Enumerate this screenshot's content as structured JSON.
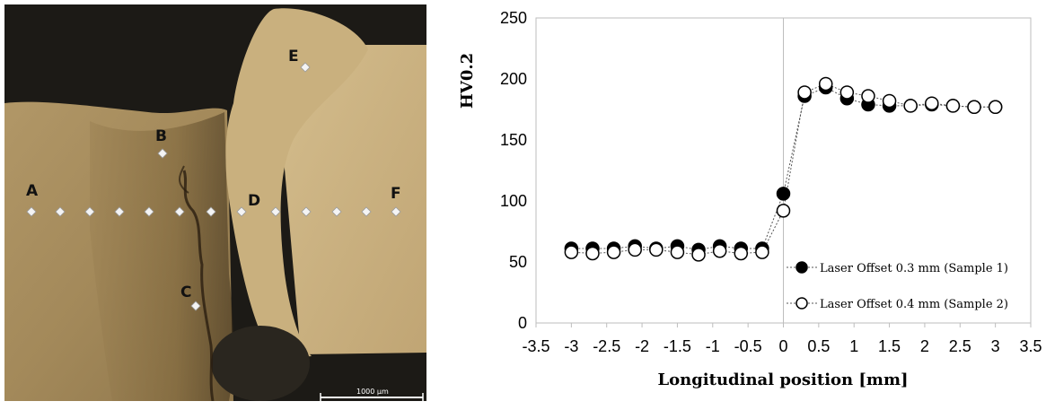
{
  "micrograph": {
    "point_labels": [
      "A",
      "B",
      "C",
      "D",
      "E",
      "F"
    ],
    "scale_bar_label": "1000 µm"
  },
  "chart_data": {
    "type": "line",
    "xlabel": "Longitudinal position [mm]",
    "ylabel": "HV0.2",
    "xlim": [
      -3.5,
      3.5
    ],
    "ylim": [
      0,
      250
    ],
    "x_ticks": [
      "-3.5",
      "-3",
      "-2.5",
      "-2",
      "-1.5",
      "-1",
      "-0.5",
      "0",
      "0.5",
      "1",
      "1.5",
      "2",
      "2.5",
      "3",
      "3.5"
    ],
    "y_ticks": [
      "0",
      "50",
      "100",
      "150",
      "200",
      "250"
    ],
    "grid": false,
    "legend_position": "bottom-right",
    "series": [
      {
        "name": "Laser Offset 0.3 mm (Sample 1)",
        "marker": "filled-circle",
        "color": "#000000",
        "x": [
          -3,
          -2.7,
          -2.4,
          -2.1,
          -1.8,
          -1.5,
          -1.2,
          -0.9,
          -0.6,
          -0.3,
          0,
          0.3,
          0.6,
          0.9,
          1.2,
          1.5,
          1.8,
          2.1,
          2.4,
          2.7,
          3
        ],
        "y": [
          61,
          61,
          61,
          63,
          61,
          63,
          60,
          63,
          61,
          61,
          106,
          186,
          193,
          184,
          179,
          178,
          178,
          179,
          178,
          177,
          177
        ]
      },
      {
        "name": "Laser Offset 0.4 mm (Sample 2)",
        "marker": "open-circle",
        "color": "#000000",
        "x": [
          -3,
          -2.7,
          -2.4,
          -2.1,
          -1.8,
          -1.5,
          -1.2,
          -0.9,
          -0.6,
          -0.3,
          0,
          0.3,
          0.6,
          0.9,
          1.2,
          1.5,
          1.8,
          2.1,
          2.4,
          2.7,
          3
        ],
        "y": [
          58,
          57,
          58,
          60,
          60,
          58,
          56,
          59,
          57,
          58,
          92,
          189,
          196,
          189,
          186,
          182,
          178,
          180,
          178,
          177,
          177
        ]
      }
    ]
  }
}
